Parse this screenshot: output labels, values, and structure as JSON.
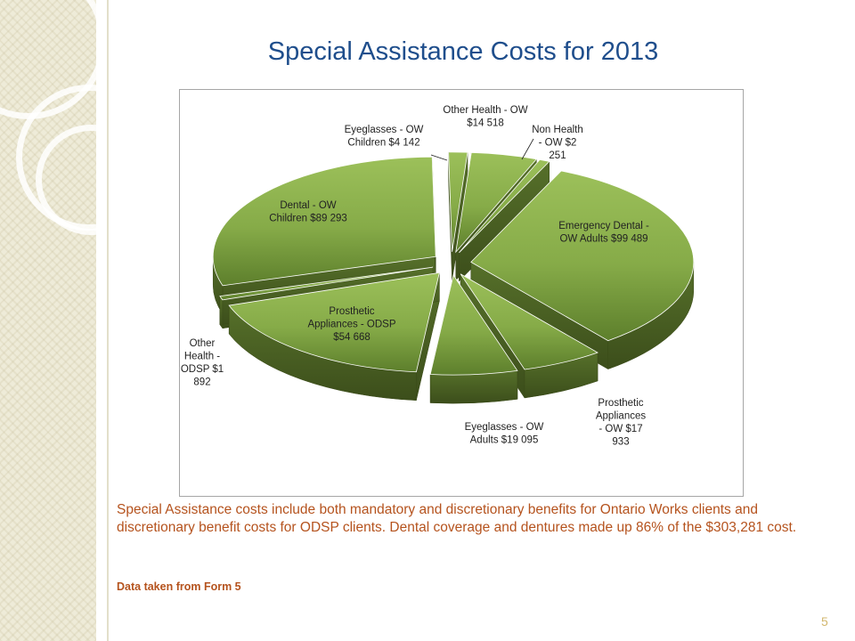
{
  "slide": {
    "title": "Special Assistance Costs for 2013",
    "caption": "Special Assistance costs include both mandatory and discretionary benefits for Ontario Works clients and discretionary benefit costs for ODSP clients. Dental coverage and dentures made up 86% of the $303,281 cost.",
    "source_note": "Data taken from Form 5",
    "page_number": "5"
  },
  "chart_data": {
    "type": "pie",
    "style": "3d-exploded",
    "colors": {
      "slice_top": "#8ab04c",
      "slice_side": "#4c6322",
      "title": "#1f4e8c",
      "caption": "#b5531e"
    },
    "slices": [
      {
        "name": "Other Health - OW",
        "value": 14518,
        "label_lines": [
          "Other Health  - OW",
          "$14 518"
        ]
      },
      {
        "name": "Non Health - OW",
        "value": 2251,
        "label_lines": [
          "Non Health",
          "- OW $2",
          "251"
        ]
      },
      {
        "name": "Emergency Dental - OW Adults",
        "value": 99489,
        "label_lines": [
          "Emergency Dental -",
          "OW Adults $99 489"
        ]
      },
      {
        "name": "Prosthetic Appliances - OW",
        "value": 17933,
        "label_lines": [
          "Prosthetic",
          "Appliances",
          "- OW $17",
          "933"
        ]
      },
      {
        "name": "Eyeglasses - OW Adults",
        "value": 19095,
        "label_lines": [
          "Eyeglasses - OW",
          "Adults $19 095"
        ]
      },
      {
        "name": "Prosthetic Appliances - ODSP",
        "value": 54668,
        "label_lines": [
          "Prosthetic",
          "Appliances - ODSP",
          "$54 668"
        ]
      },
      {
        "name": "Other Health - ODSP",
        "value": 1892,
        "label_lines": [
          "Other",
          "Health -",
          "ODSP $1",
          "892"
        ]
      },
      {
        "name": "Dental - OW Children",
        "value": 89293,
        "label_lines": [
          "Dental - OW",
          "Children $89 293"
        ]
      },
      {
        "name": "Eyeglasses - OW Children",
        "value": 4142,
        "label_lines": [
          "Eyeglasses - OW",
          "Children $4 142"
        ]
      }
    ]
  }
}
